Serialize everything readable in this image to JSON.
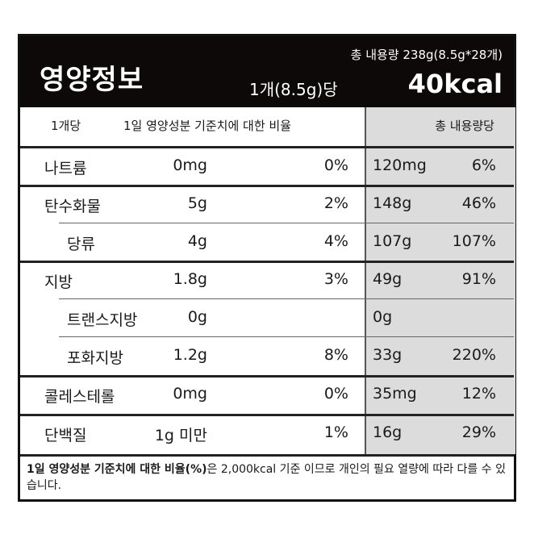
{
  "header": {
    "title": "영양정보",
    "total_content": "총 내용량 238g(8.5g*28개)",
    "serving": "1개(8.5g)당",
    "calories": "40kcal"
  },
  "columns": {
    "per_piece": "1개당",
    "daily_value": "1일 영양성분 기준치에 대한 비율",
    "per_total": "총 내용량당"
  },
  "rows": [
    {
      "name": "나트륨",
      "amount": "0mg",
      "pct": "0%",
      "total_amount": "120mg",
      "total_pct": "6%"
    },
    {
      "name": "탄수화물",
      "amount": "5g",
      "pct": "2%",
      "total_amount": "148g",
      "total_pct": "46%"
    },
    {
      "name": "당류",
      "amount": "4g",
      "pct": "4%",
      "total_amount": "107g",
      "total_pct": "107%"
    },
    {
      "name": "지방",
      "amount": "1.8g",
      "pct": "3%",
      "total_amount": "49g",
      "total_pct": "91%"
    },
    {
      "name": "트랜스지방",
      "amount": "0g",
      "pct": "",
      "total_amount": "0g",
      "total_pct": ""
    },
    {
      "name": "포화지방",
      "amount": "1.2g",
      "pct": "8%",
      "total_amount": "33g",
      "total_pct": "220%"
    },
    {
      "name": "콜레스테롤",
      "amount": "0mg",
      "pct": "0%",
      "total_amount": "35mg",
      "total_pct": "12%"
    },
    {
      "name": "단백질",
      "amount": "1g 미만",
      "pct": "1%",
      "total_amount": "16g",
      "total_pct": "29%"
    }
  ],
  "footnote_bold": "1일 영양성분 기준치에 대한 비율(%)",
  "footnote_rest": "은 2,000kcal 기준 이므로 개인의 필요 열량에 따라 다를 수 있습니다."
}
